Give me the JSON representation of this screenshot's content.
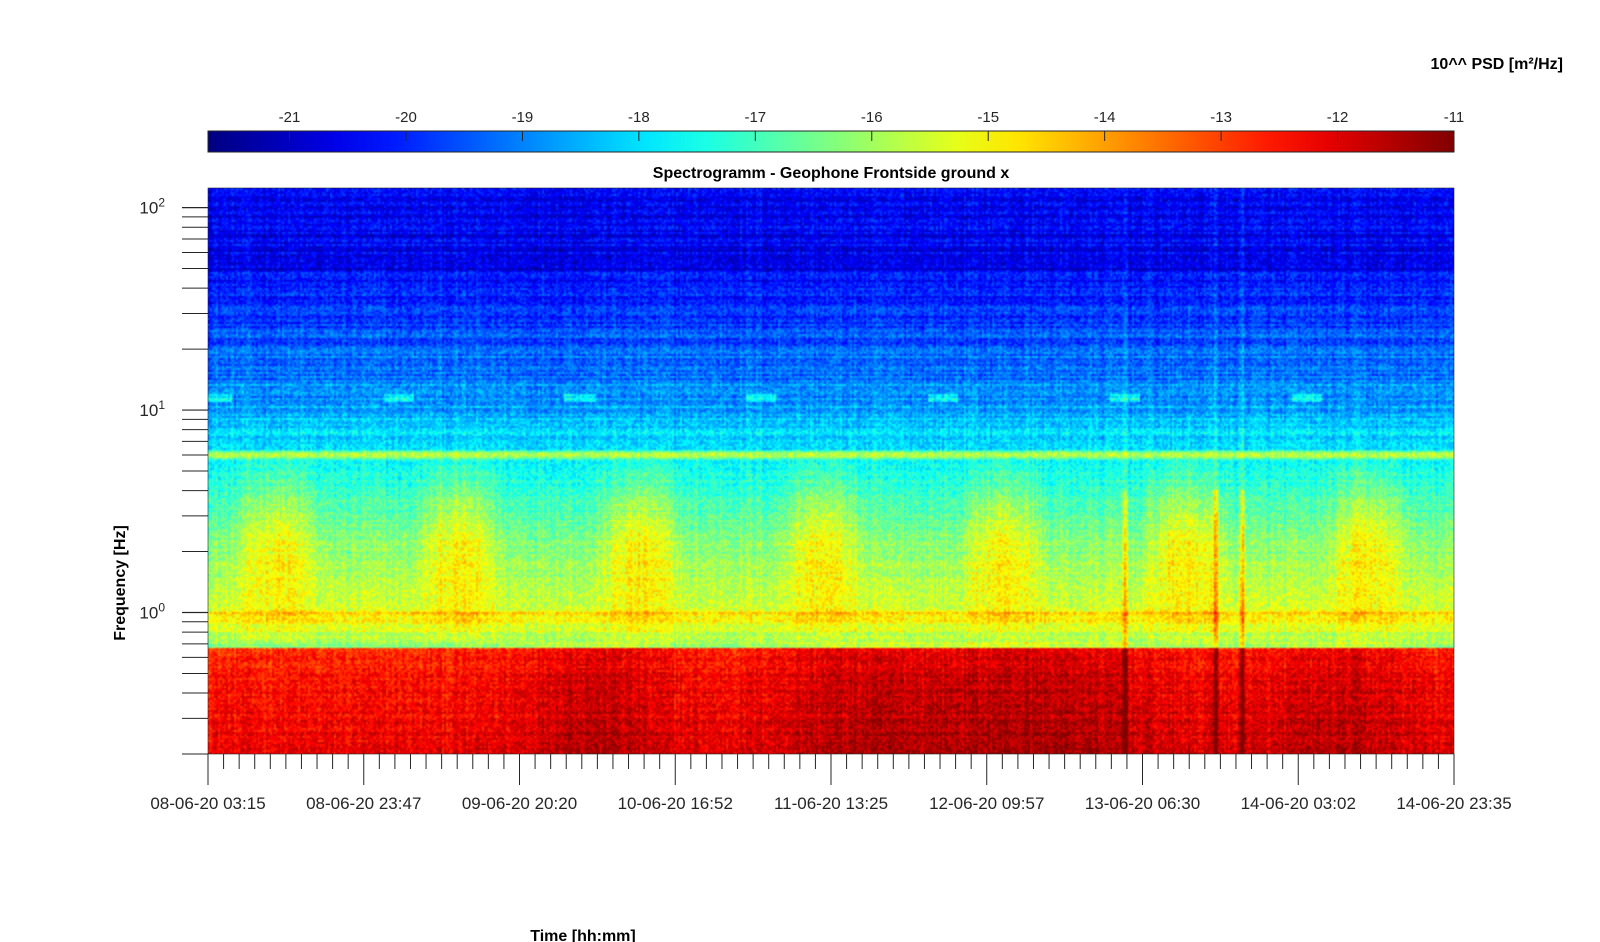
{
  "chart_data": {
    "type": "heatmap",
    "title": "Spectrogramm - Geophone Frontside ground x",
    "xlabel": "Time [hh:mm]",
    "ylabel": "Frequency [Hz]",
    "colorbar_label": "10^^ PSD [m²/Hz]",
    "colormap": "jet",
    "color_range": [
      -21.7,
      -11
    ],
    "colorbar_ticks": [
      "-21",
      "-20",
      "-19",
      "-18",
      "-17",
      "-16",
      "-15",
      "-14",
      "-13",
      "-12",
      "-11"
    ],
    "colorbar_tick_values": [
      -21,
      -20,
      -19,
      -18,
      -17,
      -16,
      -15,
      -14,
      -13,
      -12,
      -11
    ],
    "x_tick_labels": [
      "08-06-20 03:15",
      "08-06-20 23:47",
      "09-06-20 20:20",
      "10-06-20 16:52",
      "11-06-20 13:25",
      "12-06-20 09:57",
      "13-06-20 06:30",
      "14-06-20 03:02",
      "14-06-20 23:35"
    ],
    "x_range_hours": [
      0,
      164.33
    ],
    "y_scale": "log",
    "y_range_hz": [
      0.2,
      125
    ],
    "y_tick_labels": [
      {
        "base": "10",
        "exp": "2",
        "value": 100
      },
      {
        "base": "10",
        "exp": "1",
        "value": 10
      },
      {
        "base": "10",
        "exp": "0",
        "value": 1
      }
    ],
    "grid": false,
    "features": {
      "persistent_tone_hz": 6,
      "intermittent_tone_hz": 11.5,
      "low_frequency_band_hz": [
        0.2,
        0.7
      ],
      "low_frequency_band_psd_exp": -12.3,
      "high_frequency_band_hz": [
        50,
        125
      ],
      "high_frequency_band_psd_exp": -20.4
    }
  }
}
